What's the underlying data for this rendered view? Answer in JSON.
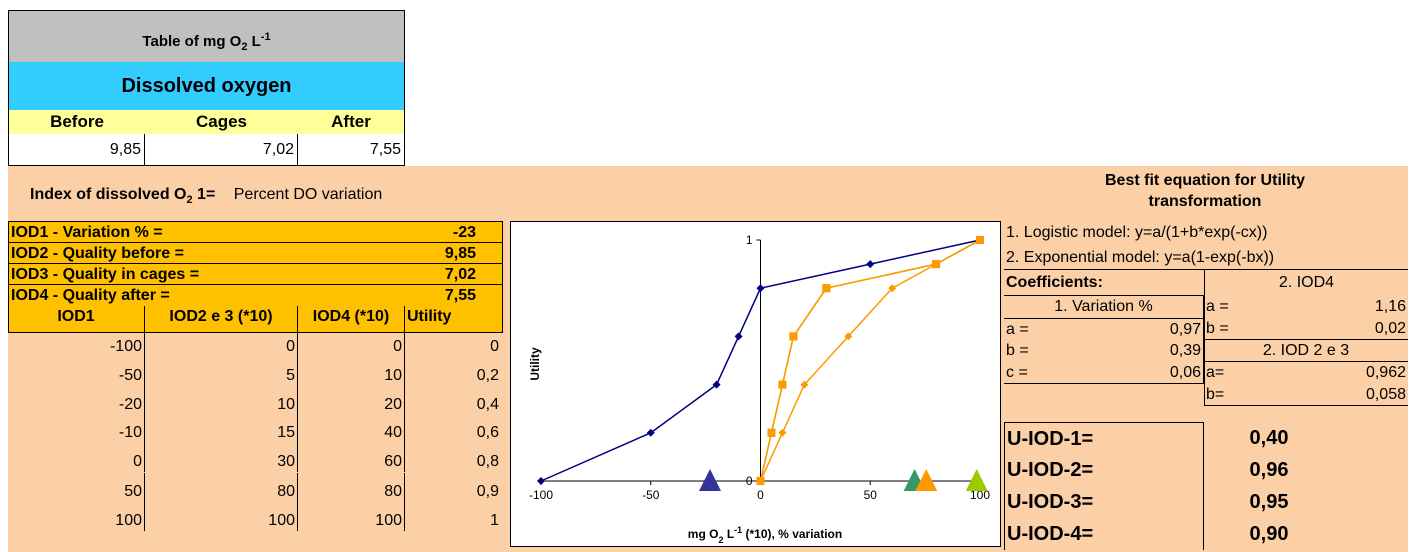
{
  "top_table": {
    "title_prefix": "Table of mg O",
    "title_sub": "2",
    "title_mid": " L",
    "title_sup": "-1",
    "subtitle": "Dissolved oxygen",
    "headers": [
      "Before",
      "Cages",
      "After"
    ],
    "values": [
      "9,85",
      "7,02",
      "7,55"
    ]
  },
  "index_row": {
    "label_prefix": "Index of dissolved O",
    "label_sub": "2",
    "label_suffix": "  1=",
    "description": "Percent DO variation"
  },
  "iod_summary": [
    {
      "label": "IOD1 - Variation % =",
      "value": "-23"
    },
    {
      "label": "IOD2 - Quality before =",
      "value": "9,85"
    },
    {
      "label": "IOD3 - Quality in cages =",
      "value": "7,02"
    },
    {
      "label": "IOD4 - Quality after =",
      "value": "7,55"
    }
  ],
  "utility_table": {
    "headers": [
      "IOD1",
      "IOD2 e 3 (*10)",
      "IOD4 (*10)",
      "Utility"
    ],
    "rows": [
      [
        "-100",
        "0",
        "0",
        "0"
      ],
      [
        "-50",
        "5",
        "10",
        "0,2"
      ],
      [
        "-20",
        "10",
        "20",
        "0,4"
      ],
      [
        "-10",
        "15",
        "40",
        "0,6"
      ],
      [
        "0",
        "30",
        "60",
        "0,8"
      ],
      [
        "50",
        "80",
        "80",
        "0,9"
      ],
      [
        "100",
        "100",
        "100",
        "1"
      ]
    ]
  },
  "chart_data": {
    "type": "line",
    "title": "",
    "ylabel": "Utility",
    "xlabel_prefix": "mg O",
    "xlabel_sub": "2",
    "xlabel_mid": " L",
    "xlabel_sup": "-1",
    "xlabel_suffix": " (*10), % variation",
    "xlim": [
      -100,
      100
    ],
    "ylim": [
      0,
      1
    ],
    "x_ticks": [
      "-100",
      "-50",
      "0",
      "50",
      "100"
    ],
    "y_ticks": [
      "0",
      "1"
    ],
    "series": [
      {
        "color": "#000080",
        "marker": "diamond",
        "x": [
          -100,
          -50,
          -20,
          -10,
          0,
          50,
          100
        ],
        "y": [
          0,
          0.2,
          0.4,
          0.6,
          0.8,
          0.9,
          1
        ]
      },
      {
        "color": "#ff9900",
        "marker": "diamond",
        "x": [
          0,
          10,
          20,
          40,
          60,
          80,
          100
        ],
        "y": [
          0,
          0.2,
          0.4,
          0.6,
          0.8,
          0.9,
          1
        ]
      },
      {
        "color": "#99cc00",
        "marker": "square",
        "x": [
          0,
          5,
          10,
          15,
          30,
          80,
          100
        ],
        "y": [
          0,
          0.2,
          0.4,
          0.6,
          0.8,
          0.9,
          1
        ]
      },
      {
        "color": "#ff9900",
        "marker": "square",
        "x": [
          0,
          5,
          10,
          15,
          30,
          80,
          100
        ],
        "y": [
          0,
          0.2,
          0.4,
          0.6,
          0.8,
          0.9,
          1
        ]
      }
    ],
    "triangles": [
      {
        "x": -23,
        "color": "#333399"
      },
      {
        "x": 70.2,
        "color": "#339966"
      },
      {
        "x": 75.5,
        "color": "#ff9900"
      },
      {
        "x": 98.5,
        "color": "#99cc00"
      }
    ]
  },
  "fit_panel": {
    "title": "Best fit equation for Utility transformation",
    "model1": "1. Logistic model: y=a/(1+b*exp(-cx))",
    "model2": "2. Exponential model: y=a(1-exp(-bx))",
    "coefficients_label": "Coefficients:",
    "variation_header": "1.  Variation %",
    "variation_coeffs": [
      {
        "name": "a =",
        "value": "0,97"
      },
      {
        "name": "b =",
        "value": "0,39"
      },
      {
        "name": "c =",
        "value": "0,06"
      }
    ],
    "iod4_header": "2.   IOD4",
    "iod4_coeffs": [
      {
        "name": "a =",
        "value": "1,16"
      },
      {
        "name": "b =",
        "value": "0,02"
      }
    ],
    "iod23_header": "2.  IOD 2 e 3",
    "iod23_coeffs": [
      {
        "name": "a=",
        "value": "0,962"
      },
      {
        "name": "b=",
        "value": "0,058"
      }
    ]
  },
  "u_iod": [
    {
      "label": "U-IOD-1=",
      "value": "0,40"
    },
    {
      "label": "U-IOD-2=",
      "value": "0,96"
    },
    {
      "label": "U-IOD-3=",
      "value": "0,95"
    },
    {
      "label": "U-IOD-4=",
      "value": "0,90"
    }
  ]
}
